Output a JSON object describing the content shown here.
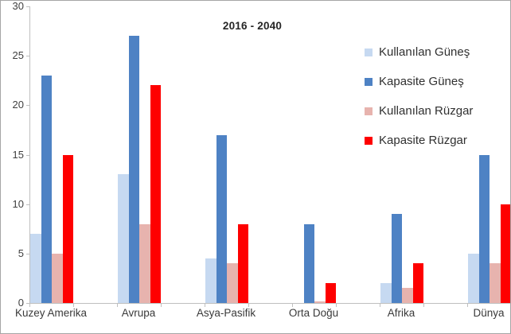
{
  "chart_data": {
    "type": "bar",
    "title": "2016 - 2040",
    "categories": [
      "Kuzey Amerika",
      "Avrupa",
      "Asya-Pasifik",
      "Orta Doğu",
      "Afrika",
      "Dünya"
    ],
    "series": [
      {
        "name": "Kullanılan Güneş",
        "color": "#c6d9f1",
        "values": [
          7,
          13,
          4.5,
          0,
          2,
          5
        ]
      },
      {
        "name": "Kapasite Güneş",
        "color": "#4e82c4",
        "values": [
          23,
          27,
          17,
          8,
          9,
          15
        ]
      },
      {
        "name": "Kullanılan Rüzgar",
        "color": "#e7b3ae",
        "values": [
          5,
          8,
          4,
          0.2,
          1.5,
          4
        ]
      },
      {
        "name": "Kapasite Rüzgar",
        "color": "#fe0000",
        "values": [
          15,
          22,
          8,
          2,
          4,
          10
        ]
      }
    ],
    "xlabel": "",
    "ylabel": "",
    "ylim": [
      0,
      30
    ],
    "yticks": [
      0,
      5,
      10,
      15,
      20,
      25,
      30
    ],
    "grid": false,
    "legend_position": "inside-right"
  }
}
